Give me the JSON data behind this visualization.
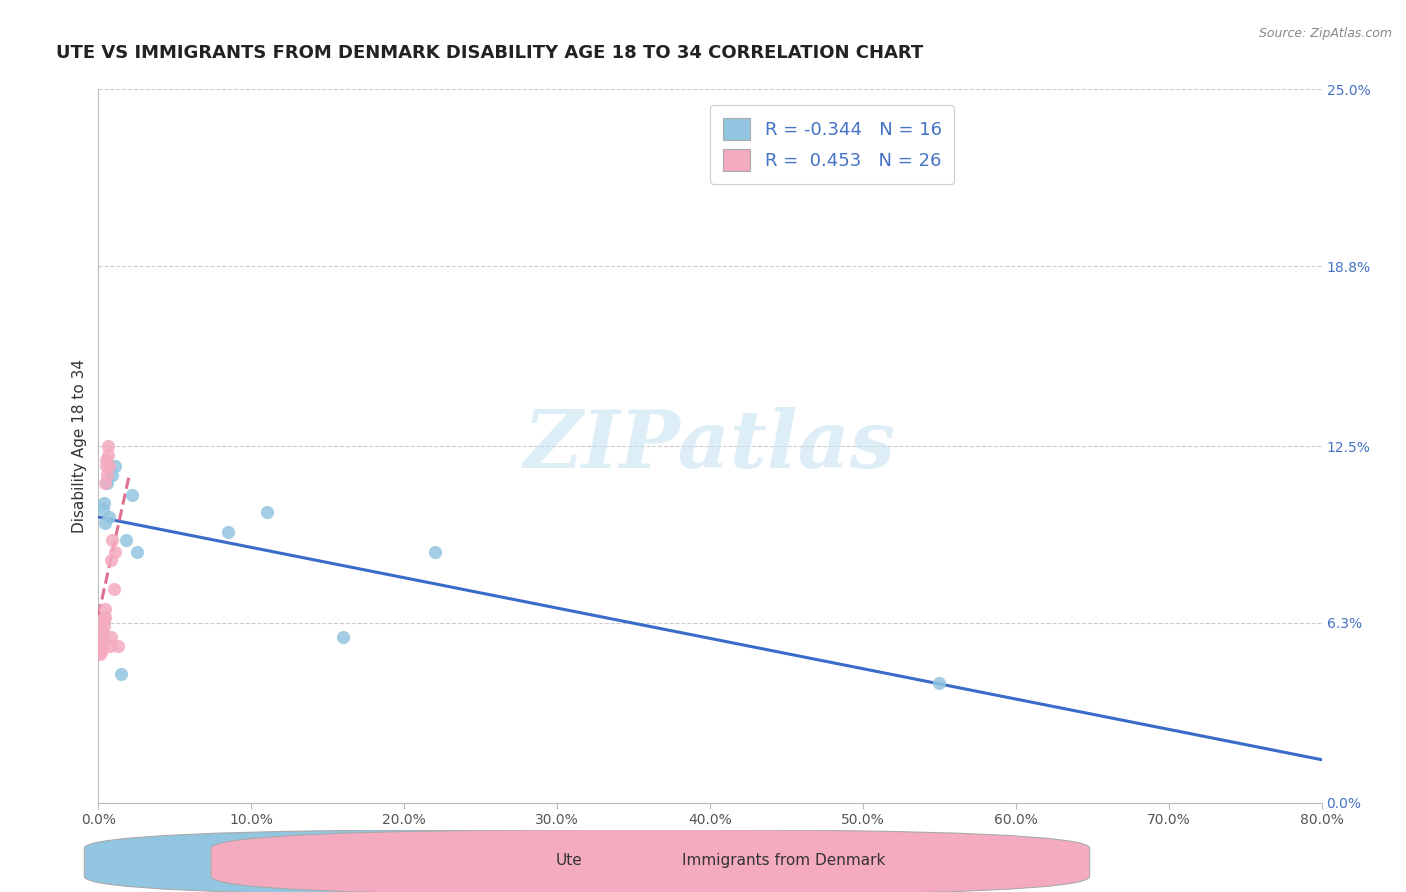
{
  "title": "UTE VS IMMIGRANTS FROM DENMARK DISABILITY AGE 18 TO 34 CORRELATION CHART",
  "source": "Source: ZipAtlas.com",
  "ylabel": "Disability Age 18 to 34",
  "watermark": "ZIPatlas",
  "xlim": [
    0.0,
    80.0
  ],
  "ylim": [
    0.0,
    25.0
  ],
  "xticks": [
    0.0,
    10.0,
    20.0,
    30.0,
    40.0,
    50.0,
    60.0,
    70.0,
    80.0
  ],
  "yticks_right": [
    0.0,
    6.3,
    12.5,
    18.8,
    25.0
  ],
  "ute_color": "#92C5E0",
  "denmark_color": "#F4AABF",
  "ute_line_color": "#3B6BC8",
  "denmark_line_color": "#E07090",
  "ute_R": -0.344,
  "ute_N": 16,
  "denmark_R": 0.453,
  "denmark_N": 26,
  "ute_x": [
    0.35,
    0.55,
    1.1,
    1.8,
    2.2,
    2.5,
    8.5,
    11.0,
    16.0,
    22.0,
    55.0,
    0.7,
    0.4,
    0.9,
    1.5,
    0.3
  ],
  "ute_y": [
    10.5,
    11.2,
    11.8,
    9.2,
    10.8,
    8.8,
    9.5,
    10.2,
    5.8,
    8.8,
    4.2,
    10.0,
    9.8,
    11.5,
    4.5,
    10.3
  ],
  "dk_x": [
    0.08,
    0.12,
    0.15,
    0.18,
    0.22,
    0.25,
    0.28,
    0.32,
    0.35,
    0.38,
    0.42,
    0.45,
    0.48,
    0.52,
    0.55,
    0.6,
    0.65,
    0.7,
    0.75,
    0.8,
    0.85,
    0.9,
    1.0,
    1.1,
    1.3,
    0.4
  ],
  "dk_y": [
    5.2,
    5.5,
    5.3,
    5.6,
    5.4,
    5.8,
    6.0,
    5.9,
    6.2,
    6.4,
    6.8,
    11.2,
    11.8,
    12.0,
    11.5,
    12.2,
    12.5,
    11.8,
    5.5,
    5.8,
    8.5,
    9.2,
    7.5,
    8.8,
    5.5,
    6.5
  ],
  "title_fontsize": 13,
  "axis_label_fontsize": 11,
  "tick_fontsize": 10,
  "legend_fontsize": 13,
  "background_color": "#ffffff",
  "grid_color": "#cccccc"
}
